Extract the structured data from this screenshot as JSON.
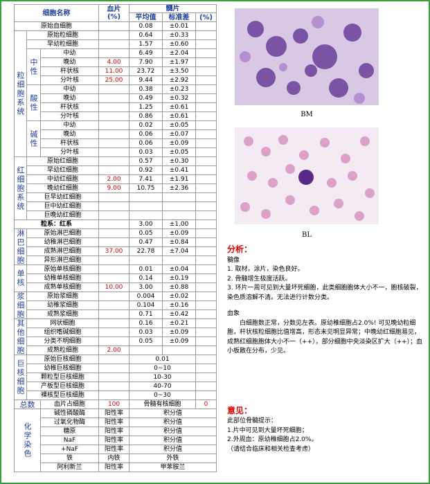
{
  "table": {
    "header": {
      "name": "细胞名称",
      "blood": "血片",
      "blood_unit": "(%)",
      "marrow": "髓片",
      "mean": "平均值",
      "sd": "标准差",
      "pct": "(%)"
    },
    "sections": [
      {
        "rows": [
          {
            "name": "原始血细胞",
            "mean": "0.08",
            "sd": "±0.01"
          }
        ]
      },
      {
        "label": "粒细胞系统",
        "rows": [
          {
            "name": "原始粒细胞",
            "mean": "0.64",
            "sd": "±0.33"
          },
          {
            "name": "早幼粒细胞",
            "mean": "1.57",
            "sd": "±0.60"
          },
          {
            "label": "中性",
            "rows": [
              {
                "name": "中幼",
                "mean": "6.49",
                "sd": "±2.04"
              },
              {
                "name": "晚幼",
                "blood": "4.00",
                "mean": "7.90",
                "sd": "±1.97"
              },
              {
                "name": "杆状核",
                "blood": "11.00",
                "mean": "23.72",
                "sd": "±3.50"
              },
              {
                "name": "分叶核",
                "blood": "25.00",
                "mean": "9.44",
                "sd": "±2.92"
              }
            ]
          },
          {
            "label": "酸性",
            "rows": [
              {
                "name": "中幼",
                "mean": "0.38",
                "sd": "±0.23"
              },
              {
                "name": "晚幼",
                "mean": "0.49",
                "sd": "±0.32"
              },
              {
                "name": "杆状核",
                "mean": "1.25",
                "sd": "±0.61"
              },
              {
                "name": "分叶核",
                "mean": "0.86",
                "sd": "±0.61"
              }
            ]
          },
          {
            "label": "碱性",
            "rows": [
              {
                "name": "中幼",
                "mean": "0.02",
                "sd": "±0.05"
              },
              {
                "name": "晚幼",
                "mean": "0.06",
                "sd": "±0.07"
              },
              {
                "name": "杆状核",
                "mean": "0.06",
                "sd": "±0.09"
              },
              {
                "name": "分叶核",
                "mean": "0.03",
                "sd": "±0.05"
              }
            ]
          }
        ]
      },
      {
        "label": "红细胞系统",
        "rows": [
          {
            "name": "原始红细胞",
            "mean": "0.57",
            "sd": "±0.30"
          },
          {
            "name": "早幼红细胞",
            "mean": "0.92",
            "sd": "±0.41"
          },
          {
            "name": "中幼红细胞",
            "blood": "2.00",
            "mean": "7.41",
            "sd": "±1.91"
          },
          {
            "name": "晚幼红细胞",
            "blood": "9.00",
            "mean": "10.75",
            "sd": "±2.36"
          },
          {
            "name": "巨早幼红细胞"
          },
          {
            "name": "巨中幼红细胞"
          },
          {
            "name": "巨晚幼红细胞"
          }
        ]
      },
      {
        "rows": [
          {
            "name": "粒系：红系",
            "mean": "3.00",
            "sd": "±1.00",
            "bold": true
          }
        ]
      },
      {
        "label": "淋巴细胞",
        "rows": [
          {
            "name": "原始淋巴细胞",
            "mean": "0.05",
            "sd": "±0.09"
          },
          {
            "name": "幼稚淋巴细胞",
            "mean": "0.47",
            "sd": "±0.84"
          },
          {
            "name": "成熟淋巴细胞",
            "blood": "37.00",
            "mean": "22.78",
            "sd": "±7.04"
          },
          {
            "name": "异形淋巴细胞"
          }
        ]
      },
      {
        "label": "单核",
        "rows": [
          {
            "name": "原始单核细胞",
            "mean": "0.01",
            "sd": "±0.04"
          },
          {
            "name": "幼稚单核细胞",
            "mean": "0.14",
            "sd": "±0.19"
          },
          {
            "name": "成熟单核细胞",
            "blood": "10.00",
            "mean": "3.00",
            "sd": "±0.88"
          }
        ]
      },
      {
        "label": "浆细胞",
        "rows": [
          {
            "name": "原始浆细胞",
            "mean": "0.004",
            "sd": "±0.02"
          },
          {
            "name": "幼稚浆细胞",
            "mean": "0.104",
            "sd": "±0.16"
          },
          {
            "name": "成熟浆细胞",
            "mean": "0.71",
            "sd": "±0.42"
          }
        ]
      },
      {
        "label": "其他细胞",
        "rows": [
          {
            "name": "网状细胞",
            "mean": "0.16",
            "sd": "±0.21"
          },
          {
            "name": "组织嗜碱细胞",
            "mean": "0.03",
            "sd": "±0.09"
          },
          {
            "name": "分类不明细胞",
            "mean": "0.05",
            "sd": "±0.09"
          },
          {
            "name": "成熟粒细胞",
            "blood": "2.00"
          }
        ]
      },
      {
        "label": "巨核细胞",
        "rows": [
          {
            "name": "原始巨核细胞",
            "range": "0.01"
          },
          {
            "name": "幼稚巨核细胞",
            "range": "0~10"
          },
          {
            "name": "颗粒型巨核细胞",
            "range": "10-30"
          },
          {
            "name": "产板型巨核细胞",
            "range": "40-70"
          },
          {
            "name": "裸核型巨核细胞",
            "range": "0~30"
          }
        ]
      },
      {
        "label": "总数",
        "rows": [
          {
            "name": "血片占细胞",
            "blood": "100",
            "range": "骨髓有核细胞",
            "pct": "0"
          }
        ]
      },
      {
        "label": "化学染色",
        "rows": [
          {
            "name": "碱性磷酸酶",
            "a": "阳性率",
            "b": "积分值"
          },
          {
            "name": "过氧化物酶",
            "a": "阳性率",
            "b": "积分值"
          },
          {
            "name": "糖原",
            "a": "阳性率",
            "b": "积分值"
          },
          {
            "name": "NaF",
            "a": "阳性率",
            "b": "积分值"
          },
          {
            "name": "+NaF",
            "a": "阳性率",
            "b": "积分值"
          },
          {
            "name": "铁",
            "a": "内铁",
            "b": "外铁"
          },
          {
            "name": "阿利新兰",
            "a": "阳性率",
            "b": "甲苯胺兰"
          }
        ]
      }
    ]
  },
  "images": {
    "bm_caption": "BM",
    "bl_caption": "BL"
  },
  "analysis": {
    "title": "分析：",
    "marrow_title": "髓像",
    "marrow_items": [
      "1. 取材，涂片，染色良好。",
      "2. 骨髓增生极度活跃。",
      "3. 环片一周可见到大量坏死细胞，此类细胞胞体大小不一，胞核破裂，染色质溶解不清。无法进行计数分类。"
    ],
    "blood_title": "血象",
    "blood_text": "白细胞数正常，分数见左表。原幼稚细胞占2.0%! 可见晚幼粒细胞，杆状核粒细胞比值增高，形态未见明显异常；中晚幼红细胞易见，成熟红细胞胞体大小不一（++），部分细胞中央淡染区扩大（++）；血小板散在分布，少见。"
  },
  "opinion": {
    "title": "意见：",
    "lines": [
      "此部位骨髓提示：",
      "1.片中可见到大量坏死细胞；",
      "2.外周血：原幼稚细胞占2.0%。",
      "（请结合临床和相关检查考虑）"
    ]
  }
}
